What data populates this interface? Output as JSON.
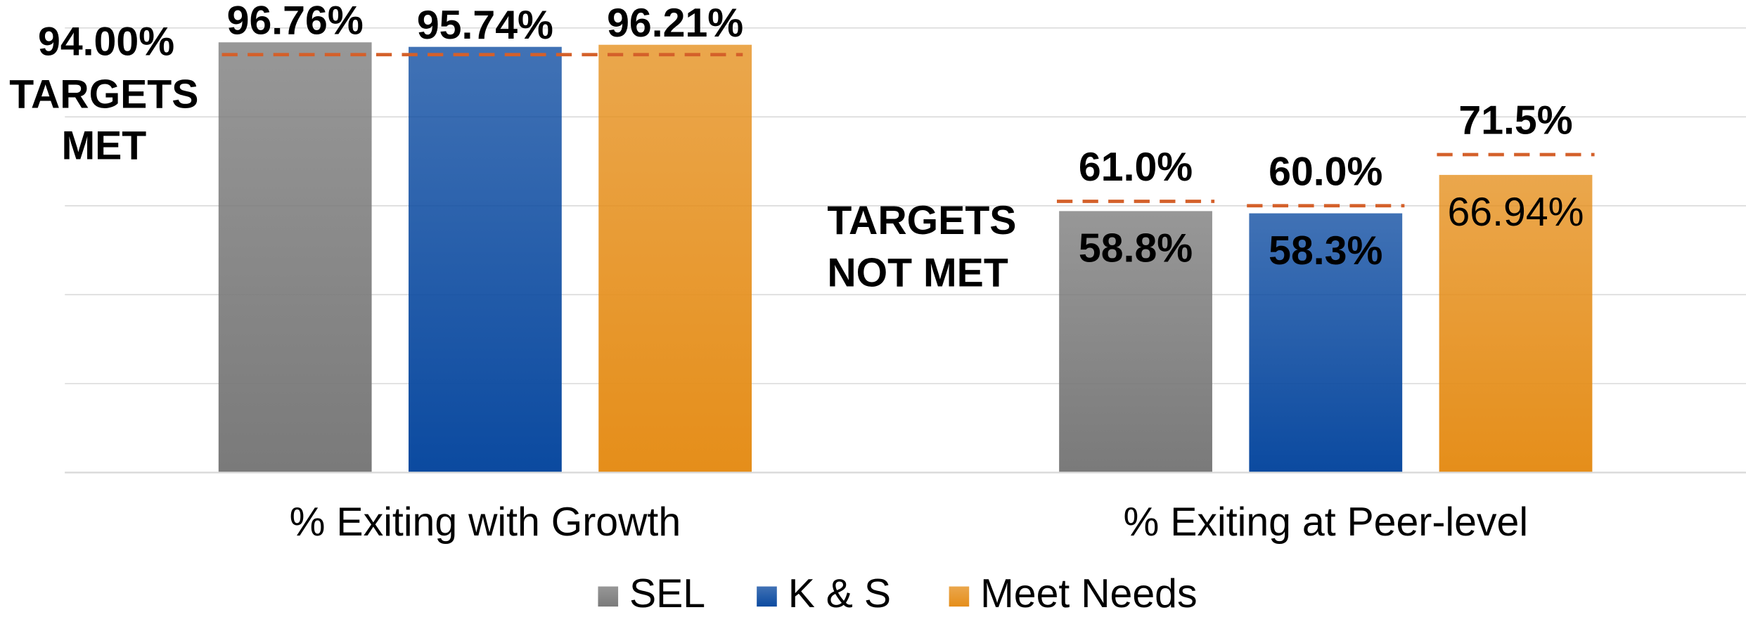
{
  "chart_data": {
    "type": "bar",
    "categories": [
      "% Exiting with Growth",
      "% Exiting at Peer-level"
    ],
    "series": [
      {
        "name": "SEL",
        "color": "#7a7a7a",
        "values": [
          96.76,
          58.8
        ],
        "value_labels": [
          "96.76%",
          "58.8%"
        ]
      },
      {
        "name": "K & S",
        "color": "#0b4aa0",
        "values": [
          95.74,
          58.3
        ],
        "value_labels": [
          "95.74%",
          "58.3%"
        ]
      },
      {
        "name": "Meet Needs",
        "color": "#e58e1a",
        "values": [
          96.21,
          66.94
        ],
        "value_labels": [
          "96.21%",
          "66.94%"
        ]
      }
    ],
    "targets": [
      [
        {
          "value": 94,
          "label": "94.00%"
        }
      ],
      [
        {
          "value": 61,
          "label": "61.0%"
        },
        {
          "value": 60,
          "label": "60.0%"
        },
        {
          "value": 71.5,
          "label": "71.5%"
        }
      ]
    ],
    "target_status": [
      [
        "TARGETS",
        "MET"
      ],
      [
        "TARGETS",
        "NOT MET"
      ]
    ],
    "target_color": "#d4602a",
    "ylim": [
      0,
      100
    ],
    "yticks": [
      0,
      20,
      40,
      60,
      80,
      100
    ],
    "grid": true,
    "legend": "bottom"
  }
}
